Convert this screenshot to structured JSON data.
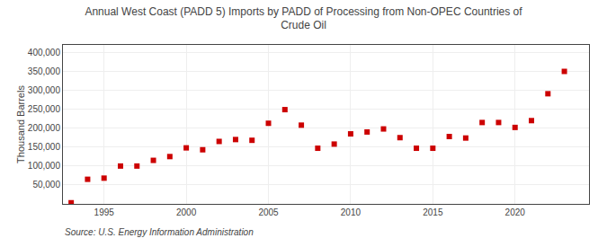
{
  "chart_data": {
    "type": "scatter",
    "title": "Annual West Coast (PADD 5) Imports by PADD of Processing from Non-OPEC Countries of\nCrude Oil",
    "ylabel": "Thousand Barrels",
    "annotations": [
      "Source: U.S. Energy Information Administration"
    ],
    "x": [
      1993,
      1994,
      1995,
      1996,
      1997,
      1998,
      1999,
      2000,
      2001,
      2002,
      2003,
      2004,
      2005,
      2006,
      2007,
      2008,
      2009,
      2010,
      2011,
      2012,
      2013,
      2014,
      2015,
      2016,
      2017,
      2018,
      2019,
      2020,
      2021,
      2022,
      2023
    ],
    "values": [
      3000,
      65000,
      68000,
      100000,
      100000,
      115000,
      125000,
      148000,
      143000,
      165000,
      170000,
      168000,
      213000,
      249000,
      208000,
      147000,
      158000,
      185000,
      190000,
      198000,
      175000,
      147000,
      147000,
      178000,
      174000,
      215000,
      215000,
      202000,
      220000,
      291000,
      350000
    ],
    "color": "#cc0000",
    "marker": "square",
    "xlim": [
      1992.5,
      2024.5
    ],
    "xticks": [
      1995,
      2000,
      2005,
      2010,
      2015,
      2020
    ],
    "ylim": [
      0,
      420000
    ],
    "yticks": [
      {
        "value": 50000,
        "label": "50,000"
      },
      {
        "value": 100000,
        "label": "100,000"
      },
      {
        "value": 150000,
        "label": "150,000"
      },
      {
        "value": 200000,
        "label": "200,000"
      },
      {
        "value": 250000,
        "label": "250,000"
      },
      {
        "value": 300000,
        "label": "300,000"
      },
      {
        "value": 350000,
        "label": "350,000"
      },
      {
        "value": 400000,
        "label": "400,000"
      }
    ],
    "grid": true
  }
}
